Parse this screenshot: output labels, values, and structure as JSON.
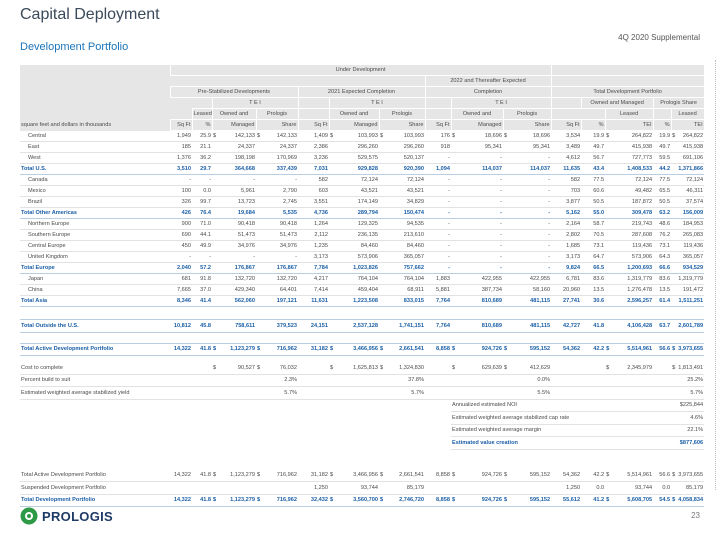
{
  "header": {
    "title": "Capital Deployment",
    "subtitle": "Development Portfolio",
    "supplement": "4Q 2020 Supplemental"
  },
  "table": {
    "header_rows": [
      [
        "Under Development"
      ],
      [
        "2022 and Thereafter Expected"
      ],
      [
        "Pre-Stabilized Developments",
        "2021 Expected Completion",
        "Completion",
        "Total Development Portfolio"
      ],
      [
        "T E I",
        "T E I",
        "T E I",
        "Owned and Managed",
        "Prologis Share"
      ],
      [
        "Leased",
        "Owned and",
        "Prologis",
        "Owned and",
        "Prologis",
        "Owned and",
        "Prologis",
        "Leased",
        "Leased"
      ],
      [
        "square feet and dollars in thousands",
        "Sq Ft",
        "%",
        "Managed",
        "Share",
        "Sq Ft",
        "Managed",
        "Share",
        "Sq Ft",
        "Managed",
        "Share",
        "Sq Ft",
        "%",
        "TEI",
        "%",
        "TEI"
      ]
    ],
    "sections": [
      {
        "rows": [
          {
            "label": "Central",
            "cells": [
              "1,949",
              "25.9",
              [
                "$",
                "142,133"
              ],
              [
                "$",
                "142,133"
              ],
              "1,409",
              [
                "$",
                "103,993"
              ],
              [
                "$",
                "103,993"
              ],
              "176",
              [
                "$",
                "18,696"
              ],
              [
                "$",
                "18,696"
              ],
              "3,534",
              "19.9",
              [
                "$",
                "264,822"
              ],
              "19.9",
              [
                "$",
                "264,822"
              ]
            ]
          },
          {
            "label": "East",
            "cells": [
              "185",
              "21.1",
              "24,337",
              "24,337",
              "2,386",
              "296,260",
              "296,260",
              "918",
              "95,341",
              "95,341",
              "3,489",
              "49.7",
              "415,938",
              "49.7",
              "415,938"
            ]
          },
          {
            "label": "West",
            "cells": [
              "1,376",
              "36.2",
              "198,198",
              "170,969",
              "3,236",
              "529,575",
              "520,137",
              "-",
              "-",
              "-",
              "4,612",
              "56.7",
              "727,773",
              "59.5",
              "691,106"
            ]
          },
          {
            "label": "Total U.S.",
            "emphasis": true,
            "cells": [
              "3,510",
              "29.7",
              "364,668",
              "337,439",
              "7,031",
              "929,828",
              "920,390",
              "1,094",
              "114,037",
              "114,037",
              "11,635",
              "43.4",
              "1,408,533",
              "44.2",
              "1,371,866"
            ]
          },
          {
            "label": "Canada",
            "cells": [
              "-",
              "-",
              "-",
              "-",
              "582",
              "72,124",
              "72,124",
              "-",
              "-",
              "-",
              "582",
              "77.5",
              "72,124",
              "77.5",
              "72,124"
            ]
          },
          {
            "label": "Mexico",
            "cells": [
              "100",
              "0.0",
              "5,961",
              "2,790",
              "603",
              "43,521",
              "43,521",
              "-",
              "-",
              "-",
              "703",
              "60.6",
              "49,482",
              "65.5",
              "46,311"
            ]
          },
          {
            "label": "Brazil",
            "cells": [
              "326",
              "99.7",
              "13,723",
              "2,745",
              "3,551",
              "174,149",
              "34,829",
              "-",
              "-",
              "-",
              "3,877",
              "50.5",
              "187,872",
              "50.5",
              "37,574"
            ]
          },
          {
            "label": "Total Other Americas",
            "emphasis": true,
            "cells": [
              "426",
              "76.4",
              "19,684",
              "5,535",
              "4,736",
              "289,794",
              "150,474",
              "-",
              "-",
              "-",
              "5,162",
              "55.0",
              "309,478",
              "63.2",
              "156,009"
            ]
          },
          {
            "label": "Northern Europe",
            "cells": [
              "900",
              "71.0",
              "90,418",
              "90,418",
              "1,264",
              "129,325",
              "94,535",
              "-",
              "-",
              "-",
              "2,164",
              "58.7",
              "219,743",
              "48.6",
              "184,953"
            ]
          },
          {
            "label": "Southern Europe",
            "cells": [
              "690",
              "44.1",
              "51,473",
              "51,473",
              "2,112",
              "236,135",
              "213,610",
              "-",
              "-",
              "-",
              "2,802",
              "70.5",
              "287,608",
              "76.2",
              "265,083"
            ]
          },
          {
            "label": "Central Europe",
            "cells": [
              "450",
              "49.9",
              "34,976",
              "34,976",
              "1,235",
              "84,460",
              "84,460",
              "-",
              "-",
              "-",
              "1,685",
              "73.1",
              "119,436",
              "73.1",
              "119,436"
            ]
          },
          {
            "label": "United Kingdom",
            "cells": [
              "-",
              "-",
              "-",
              "-",
              "3,173",
              "573,906",
              "365,057",
              "-",
              "-",
              "-",
              "3,173",
              "64.7",
              "573,906",
              "64.3",
              "365,057"
            ]
          },
          {
            "label": "Total Europe",
            "emphasis": true,
            "cells": [
              "2,040",
              "57.2",
              "176,867",
              "176,867",
              "7,784",
              "1,023,826",
              "757,662",
              "-",
              "-",
              "-",
              "9,824",
              "66.5",
              "1,200,693",
              "66.6",
              "934,529"
            ]
          },
          {
            "label": "Japan",
            "cells": [
              "681",
              "91.8",
              "132,720",
              "132,720",
              "4,217",
              "764,104",
              "764,104",
              "1,883",
              "422,955",
              "422,955",
              "6,781",
              "83.6",
              "1,319,779",
              "83.6",
              "1,319,779"
            ]
          },
          {
            "label": "China",
            "cells": [
              "7,665",
              "37.0",
              "429,340",
              "64,401",
              "7,414",
              "459,404",
              "68,911",
              "5,881",
              "387,734",
              "58,160",
              "20,960",
              "13.5",
              "1,276,478",
              "13.5",
              "191,472"
            ]
          },
          {
            "label": "Total Asia",
            "emphasis": true,
            "cells": [
              "8,346",
              "41.4",
              "562,060",
              "197,121",
              "11,631",
              "1,223,508",
              "833,015",
              "7,764",
              "810,689",
              "481,115",
              "27,741",
              "30.6",
              "2,596,257",
              "61.4",
              "1,511,251"
            ]
          }
        ]
      },
      {
        "rows": [
          {
            "label": "Total Outside the U.S.",
            "emphasis": true,
            "cells": [
              "10,812",
              "45.8",
              "758,611",
              "379,523",
              "24,151",
              "2,537,128",
              "1,741,151",
              "7,764",
              "810,689",
              "481,115",
              "42,727",
              "41.8",
              "4,106,428",
              "63.7",
              "2,601,789"
            ]
          }
        ]
      },
      {
        "rows": [
          {
            "label": "Total Active Development Portfolio",
            "emphasis": true,
            "cells": [
              "14,322",
              "41.8",
              [
                "$",
                "1,123,279"
              ],
              [
                "$",
                "716,962"
              ],
              "31,182",
              [
                "$",
                "3,466,956"
              ],
              [
                "$",
                "2,661,541"
              ],
              "8,858",
              [
                "$",
                "924,726"
              ],
              [
                "$",
                "595,152"
              ],
              "54,362",
              "42.2",
              [
                "$",
                "5,514,961"
              ],
              "56.6",
              [
                "$",
                "3,973,655"
              ]
            ]
          }
        ]
      },
      {
        "rows": [
          {
            "label": "Cost to complete",
            "cells": [
              null,
              null,
              [
                "$",
                "90,527"
              ],
              [
                "$",
                "76,032"
              ],
              null,
              [
                "$",
                "1,625,813"
              ],
              [
                "$",
                "1,324,830"
              ],
              null,
              [
                "$",
                "629,639"
              ],
              [
                "$",
                "412,629"
              ],
              null,
              null,
              [
                "$",
                "2,345,979"
              ],
              null,
              [
                "$",
                "1,813,491"
              ]
            ]
          },
          {
            "label": "Percent build to suit",
            "cells": [
              null,
              null,
              null,
              "2.3%",
              null,
              null,
              "37.8%",
              null,
              null,
              "0.0%",
              null,
              null,
              null,
              null,
              "25.2%"
            ]
          },
          {
            "label": "Estimated weighted average stabilized yield",
            "cells": [
              null,
              null,
              null,
              "5.7%",
              null,
              null,
              "5.7%",
              null,
              null,
              "5.5%",
              null,
              null,
              null,
              null,
              "5.7%"
            ]
          }
        ],
        "valuation": [
          {
            "label": "Annualized estimated NOI",
            "value": "$225,844"
          },
          {
            "label": "Estimated weighted average stabilized cap rate",
            "value": "4.6%"
          },
          {
            "label": "Estimated weighted average margin",
            "value": "22.1%"
          },
          {
            "label": "Estimated value creation",
            "value": "$877,606",
            "emphasis": true
          }
        ]
      },
      {
        "rows": [
          {
            "label": "Total Active Development Portfolio",
            "cells": [
              "14,322",
              "41.8",
              [
                "$",
                "1,123,279"
              ],
              [
                "$",
                "716,962"
              ],
              "31,182",
              [
                "$",
                "3,466,956"
              ],
              [
                "$",
                "2,661,541"
              ],
              "8,858",
              [
                "$",
                "924,726"
              ],
              [
                "$",
                "595,152"
              ],
              "54,362",
              "42.2",
              [
                "$",
                "5,514,961"
              ],
              "56.6",
              [
                "$",
                "3,973,655"
              ]
            ]
          },
          {
            "label": "Suspended Development Portfolio",
            "cells": [
              null,
              null,
              null,
              null,
              "1,250",
              "93,744",
              "85,179",
              null,
              null,
              null,
              "1,250",
              "0.0",
              "93,744",
              "0.0",
              "85,179"
            ]
          },
          {
            "label": "Total Development Portfolio",
            "emphasis": true,
            "cells": [
              "14,322",
              "41.8",
              [
                "$",
                "1,123,279"
              ],
              [
                "$",
                "716,962"
              ],
              "32,432",
              [
                "$",
                "3,560,700"
              ],
              [
                "$",
                "2,746,720"
              ],
              "8,858",
              [
                "$",
                "924,726"
              ],
              [
                "$",
                "595,152"
              ],
              "55,612",
              "41.2",
              [
                "$",
                "5,608,705"
              ],
              "54.5",
              [
                "$",
                "4,058,834"
              ]
            ]
          }
        ]
      }
    ]
  },
  "footer": {
    "logo": "PROLOGIS",
    "page": "23"
  }
}
